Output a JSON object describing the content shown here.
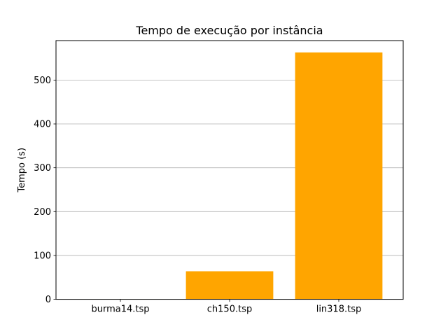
{
  "chart_data": {
    "type": "bar",
    "title": "Tempo de execução por instância",
    "xlabel": "",
    "ylabel": "Tempo (s)",
    "categories": [
      "burma14.tsp",
      "ch150.tsp",
      "lin318.tsp"
    ],
    "values": [
      0.2,
      64,
      563
    ],
    "ylim": [
      0,
      590
    ],
    "yticks": [
      0,
      100,
      200,
      300,
      400,
      500
    ],
    "grid": "y",
    "bar_color": "#ffa500",
    "grid_color": "#b0b0b0"
  }
}
